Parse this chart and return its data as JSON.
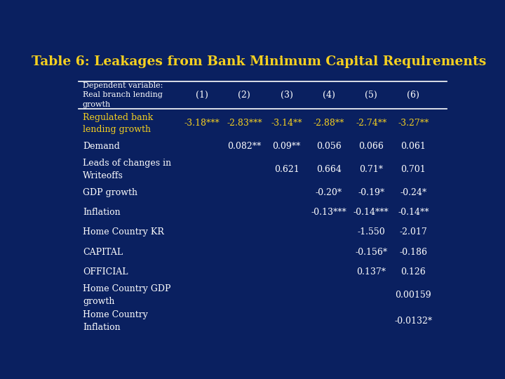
{
  "title": "Table 6: Leakages from Bank Minimum Capital Requirements",
  "bg_color": "#0a2060",
  "title_color": "#f5d020",
  "header_text_color": "#ffffff",
  "row_text_color": "#ffffff",
  "highlight_color": "#f5d020",
  "columns": [
    "(1)",
    "(2)",
    "(3)",
    "(4)",
    "(5)",
    "(6)"
  ],
  "rows": [
    {
      "label": "Regulated bank\nlending growth",
      "values": [
        "-3.18***",
        "-2.83***",
        "-3.14**",
        "-2.88**",
        "-2.74**",
        "-3.27**"
      ],
      "highlight": true
    },
    {
      "label": "Demand",
      "values": [
        "",
        "0.082**",
        "0.09**",
        "0.056",
        "0.066",
        "0.061"
      ],
      "highlight": false
    },
    {
      "label": "Leads of changes in\nWriteoffs",
      "values": [
        "",
        "",
        "0.621",
        "0.664",
        "0.71*",
        "0.701"
      ],
      "highlight": false
    },
    {
      "label": "GDP growth",
      "values": [
        "",
        "",
        "",
        "-0.20*",
        "-0.19*",
        "-0.24*"
      ],
      "highlight": false
    },
    {
      "label": "Inflation",
      "values": [
        "",
        "",
        "",
        "-0.13***",
        "-0.14***",
        "-0.14**"
      ],
      "highlight": false
    },
    {
      "label": "Home Country KR",
      "values": [
        "",
        "",
        "",
        "",
        "-1.550",
        "-2.017"
      ],
      "highlight": false
    },
    {
      "label": "CAPITAL",
      "values": [
        "",
        "",
        "",
        "",
        "-0.156*",
        "-0.186"
      ],
      "highlight": false
    },
    {
      "label": "OFFICIAL",
      "values": [
        "",
        "",
        "",
        "",
        "0.137*",
        "0.126"
      ],
      "highlight": false
    },
    {
      "label": "Home Country GDP\ngrowth",
      "values": [
        "",
        "",
        "",
        "",
        "",
        "0.00159"
      ],
      "highlight": false
    },
    {
      "label": "Home Country\nInflation",
      "values": [
        "",
        "",
        "",
        "",
        "",
        "-0.0132*"
      ],
      "highlight": false
    }
  ]
}
